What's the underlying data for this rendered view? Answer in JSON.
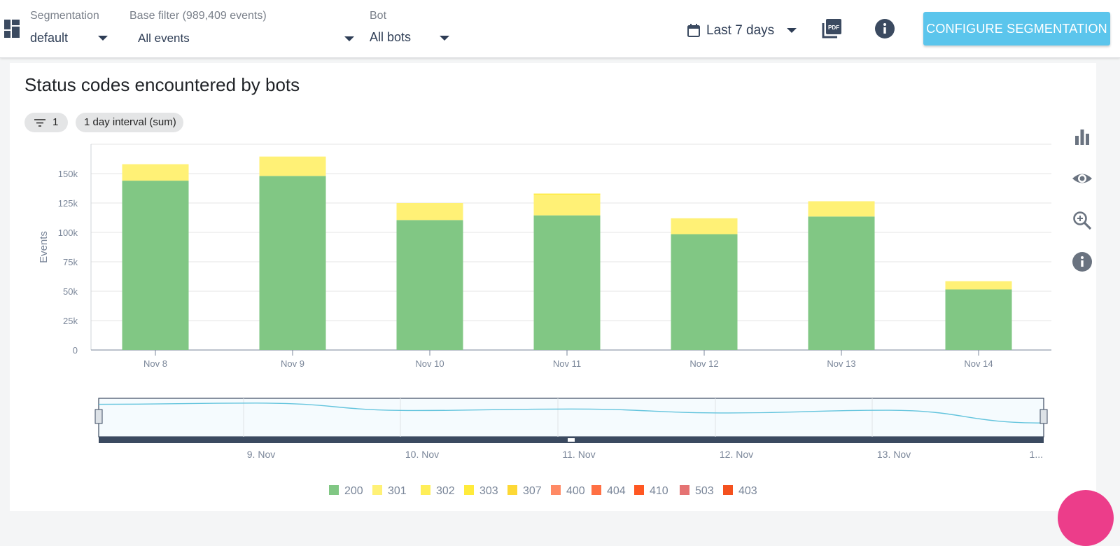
{
  "topbar": {
    "segmentation": {
      "label": "Segmentation",
      "value": "default"
    },
    "base_filter": {
      "label": "Base filter (989,409 events)",
      "value": "All events"
    },
    "bot": {
      "label": "Bot",
      "value": "All bots"
    },
    "date_range": "Last 7 days",
    "configure_button": "CONFIGURE SEGMENTATION",
    "icons": [
      "dashboard-icon",
      "calendar-icon",
      "pdf-icon",
      "info-icon"
    ]
  },
  "panel": {
    "title": "Status codes encountered by bots",
    "filter_chip_count": "1",
    "interval_chip": "1 day interval (sum)",
    "side_tools": [
      "bar-chart-icon",
      "eye-icon",
      "zoom-in-icon",
      "info-icon"
    ]
  },
  "colors": {
    "200": "#81c784",
    "301": "#fff176",
    "302": "#ffee58",
    "303": "#ffeb3b",
    "307": "#fdd835",
    "400": "#ff8a65",
    "404": "#ff7043",
    "410": "#ff5722",
    "503": "#e57373",
    "403": "#f4511e",
    "accent": "#5bc5ec"
  },
  "chart_data": {
    "type": "bar",
    "stacked": true,
    "categories": [
      "Nov 8",
      "Nov 9",
      "Nov 10",
      "Nov 11",
      "Nov 12",
      "Nov 13",
      "Nov 14"
    ],
    "series": [
      {
        "name": "200",
        "values": [
          144000,
          148000,
          110500,
          114500,
          98500,
          113500,
          51500
        ]
      },
      {
        "name": "301",
        "values": [
          14000,
          16500,
          14500,
          17500,
          13500,
          13000,
          7000
        ]
      },
      {
        "name": "302",
        "values": [
          0,
          0,
          0,
          0,
          0,
          0,
          0
        ]
      },
      {
        "name": "303",
        "values": [
          0,
          0,
          0,
          1000,
          0,
          0,
          0
        ]
      },
      {
        "name": "307",
        "values": [
          0,
          0,
          0,
          0,
          0,
          0,
          0
        ]
      },
      {
        "name": "400",
        "values": [
          0,
          0,
          0,
          0,
          0,
          0,
          0
        ]
      },
      {
        "name": "404",
        "values": [
          0,
          0,
          0,
          0,
          0,
          0,
          0
        ]
      },
      {
        "name": "410",
        "values": [
          0,
          0,
          0,
          0,
          0,
          0,
          0
        ]
      },
      {
        "name": "503",
        "values": [
          0,
          0,
          0,
          0,
          0,
          0,
          0
        ]
      },
      {
        "name": "403",
        "values": [
          0,
          0,
          0,
          0,
          0,
          0,
          0
        ]
      }
    ],
    "ylabel": "Events",
    "yticks": [
      "0",
      "25k",
      "50k",
      "75k",
      "100k",
      "125k",
      "150k"
    ],
    "ylim": [
      0,
      175000
    ],
    "grid": true,
    "legend_position": "bottom",
    "navigator": {
      "labels": [
        "9. Nov",
        "10. Nov",
        "11. Nov",
        "12. Nov",
        "13. Nov",
        "1..."
      ]
    }
  }
}
